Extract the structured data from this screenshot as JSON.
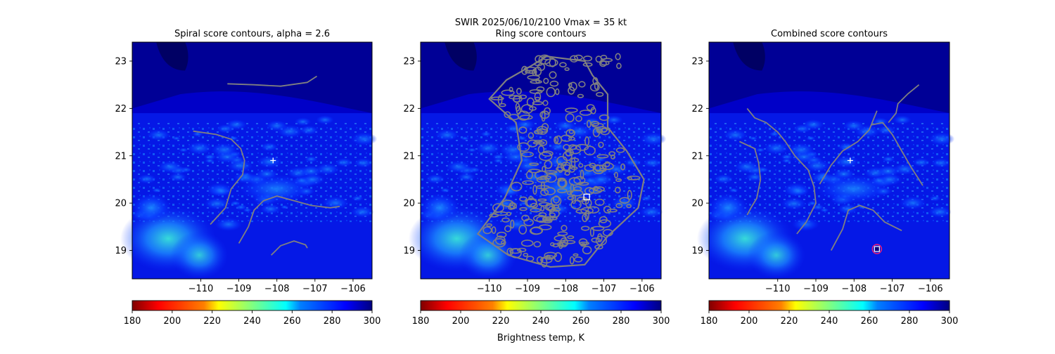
{
  "figure": {
    "suptitle_line1": "SWIR  2025/06/10/2100    Vmax = 35 kt",
    "colorbar_label": "Brightness temp, K"
  },
  "colors": {
    "contour": "#808080",
    "bg_dark": "#000086",
    "bg_mid": "#0000c8",
    "bg_blue": "#0a2cff",
    "bright": "#1c8cff",
    "cyan": "#3cf0d8",
    "marker_ring": "#e0207a",
    "marker_fill": "#ffffff"
  },
  "chart_data": [
    {
      "type": "heatmap",
      "title": "Spiral score contours, alpha =  2.6",
      "xlim": [
        -111.8,
        -105.5
      ],
      "ylim": [
        18.4,
        23.4
      ],
      "xticks": [
        -110,
        -109,
        -108,
        -107,
        -106
      ],
      "yticks": [
        19,
        20,
        21,
        22,
        23
      ],
      "colorbar": {
        "range": [
          180,
          300
        ],
        "ticks": [
          180,
          200,
          220,
          240,
          260,
          280,
          300
        ],
        "colormap": "jet_r"
      },
      "center_marker": {
        "shape": "plus",
        "x": -108.1,
        "y": 20.9
      },
      "contours": [
        [
          [
            -109.3,
            22.52
          ],
          [
            -108.6,
            22.5
          ],
          [
            -107.9,
            22.47
          ],
          [
            -107.2,
            22.55
          ],
          [
            -106.95,
            22.68
          ]
        ],
        [
          [
            -110.2,
            21.52
          ],
          [
            -109.6,
            21.45
          ],
          [
            -109.2,
            21.35
          ],
          [
            -108.95,
            21.15
          ],
          [
            -108.85,
            20.9
          ],
          [
            -108.9,
            20.6
          ],
          [
            -109.2,
            20.3
          ],
          [
            -109.35,
            19.9
          ],
          [
            -109.75,
            19.55
          ]
        ],
        [
          [
            -109.0,
            19.15
          ],
          [
            -108.75,
            19.5
          ],
          [
            -108.6,
            19.85
          ],
          [
            -108.35,
            20.05
          ],
          [
            -108.0,
            20.15
          ],
          [
            -107.55,
            20.05
          ],
          [
            -107.1,
            19.95
          ],
          [
            -106.6,
            19.9
          ],
          [
            -106.35,
            19.93
          ]
        ],
        [
          [
            -108.15,
            18.9
          ],
          [
            -107.9,
            19.1
          ],
          [
            -107.55,
            19.2
          ],
          [
            -107.25,
            19.12
          ],
          [
            -107.2,
            19.05
          ]
        ]
      ]
    },
    {
      "type": "heatmap",
      "title": "Ring score contours",
      "xlim": [
        -111.8,
        -105.5
      ],
      "ylim": [
        18.4,
        23.4
      ],
      "xticks": [
        -110,
        -109,
        -108,
        -107,
        -106
      ],
      "yticks": [
        19,
        20,
        21,
        22,
        23
      ],
      "colorbar": {
        "range": [
          180,
          300
        ],
        "ticks": [
          180,
          200,
          220,
          240,
          260,
          280,
          300
        ],
        "colormap": "jet_r"
      },
      "center_marker": {
        "shape": "square",
        "x": -107.45,
        "y": 20.13
      },
      "contour_region": [
        [
          -108.5,
          23.1
        ],
        [
          -107.5,
          23.0
        ],
        [
          -107.3,
          22.7
        ],
        [
          -106.9,
          22.3
        ],
        [
          -106.9,
          21.6
        ],
        [
          -106.4,
          21.1
        ],
        [
          -105.95,
          20.5
        ],
        [
          -106.1,
          19.9
        ],
        [
          -106.9,
          19.3
        ],
        [
          -107.5,
          18.7
        ],
        [
          -108.4,
          18.65
        ],
        [
          -109.5,
          18.9
        ],
        [
          -110.3,
          19.35
        ],
        [
          -109.6,
          20.1
        ],
        [
          -109.15,
          20.9
        ],
        [
          -109.3,
          21.7
        ],
        [
          -110.0,
          22.2
        ],
        [
          -109.55,
          22.6
        ],
        [
          -108.9,
          22.9
        ]
      ]
    },
    {
      "type": "heatmap",
      "title": "Combined score contours",
      "xlim": [
        -111.8,
        -105.5
      ],
      "ylim": [
        18.4,
        23.4
      ],
      "xticks": [
        -110,
        -109,
        -108,
        -107,
        -106
      ],
      "yticks": [
        19,
        20,
        21,
        22,
        23
      ],
      "colorbar": {
        "range": [
          180,
          300
        ],
        "ticks": [
          180,
          200,
          220,
          240,
          260,
          280,
          300
        ],
        "colormap": "jet_r"
      },
      "center_marker": {
        "shape": "plus",
        "x": -108.1,
        "y": 20.9
      },
      "best_marker": {
        "shape": "square-in-circle",
        "x": -107.4,
        "y": 19.03
      },
      "contours": [
        [
          [
            -110.8,
            22.0
          ],
          [
            -110.6,
            21.8
          ],
          [
            -110.3,
            21.7
          ],
          [
            -110.0,
            21.5
          ],
          [
            -109.8,
            21.3
          ],
          [
            -109.55,
            21.0
          ],
          [
            -109.2,
            20.7
          ],
          [
            -109.05,
            20.35
          ],
          [
            -109.0,
            20.0
          ],
          [
            -109.25,
            19.6
          ],
          [
            -109.5,
            19.35
          ]
        ],
        [
          [
            -111.0,
            21.3
          ],
          [
            -110.6,
            21.15
          ],
          [
            -110.5,
            20.85
          ],
          [
            -110.45,
            20.5
          ],
          [
            -110.55,
            20.1
          ],
          [
            -110.7,
            19.9
          ],
          [
            -110.8,
            19.75
          ]
        ],
        [
          [
            -108.6,
            19.0
          ],
          [
            -108.3,
            19.45
          ],
          [
            -108.15,
            19.85
          ],
          [
            -107.85,
            19.95
          ],
          [
            -107.5,
            19.85
          ],
          [
            -107.2,
            19.6
          ],
          [
            -106.95,
            19.5
          ],
          [
            -106.75,
            19.42
          ]
        ],
        [
          [
            -108.9,
            20.4
          ],
          [
            -108.6,
            20.8
          ],
          [
            -108.3,
            21.1
          ],
          [
            -107.9,
            21.3
          ],
          [
            -107.6,
            21.55
          ],
          [
            -107.5,
            21.75
          ],
          [
            -107.4,
            21.95
          ]
        ],
        [
          [
            -107.1,
            21.7
          ],
          [
            -106.9,
            21.9
          ],
          [
            -106.85,
            22.1
          ],
          [
            -106.6,
            22.3
          ],
          [
            -106.3,
            22.5
          ]
        ],
        [
          [
            -107.55,
            21.65
          ],
          [
            -107.25,
            21.7
          ],
          [
            -107.0,
            21.45
          ],
          [
            -106.75,
            21.1
          ],
          [
            -106.5,
            20.75
          ],
          [
            -106.3,
            20.5
          ],
          [
            -106.2,
            20.37
          ]
        ]
      ]
    }
  ]
}
